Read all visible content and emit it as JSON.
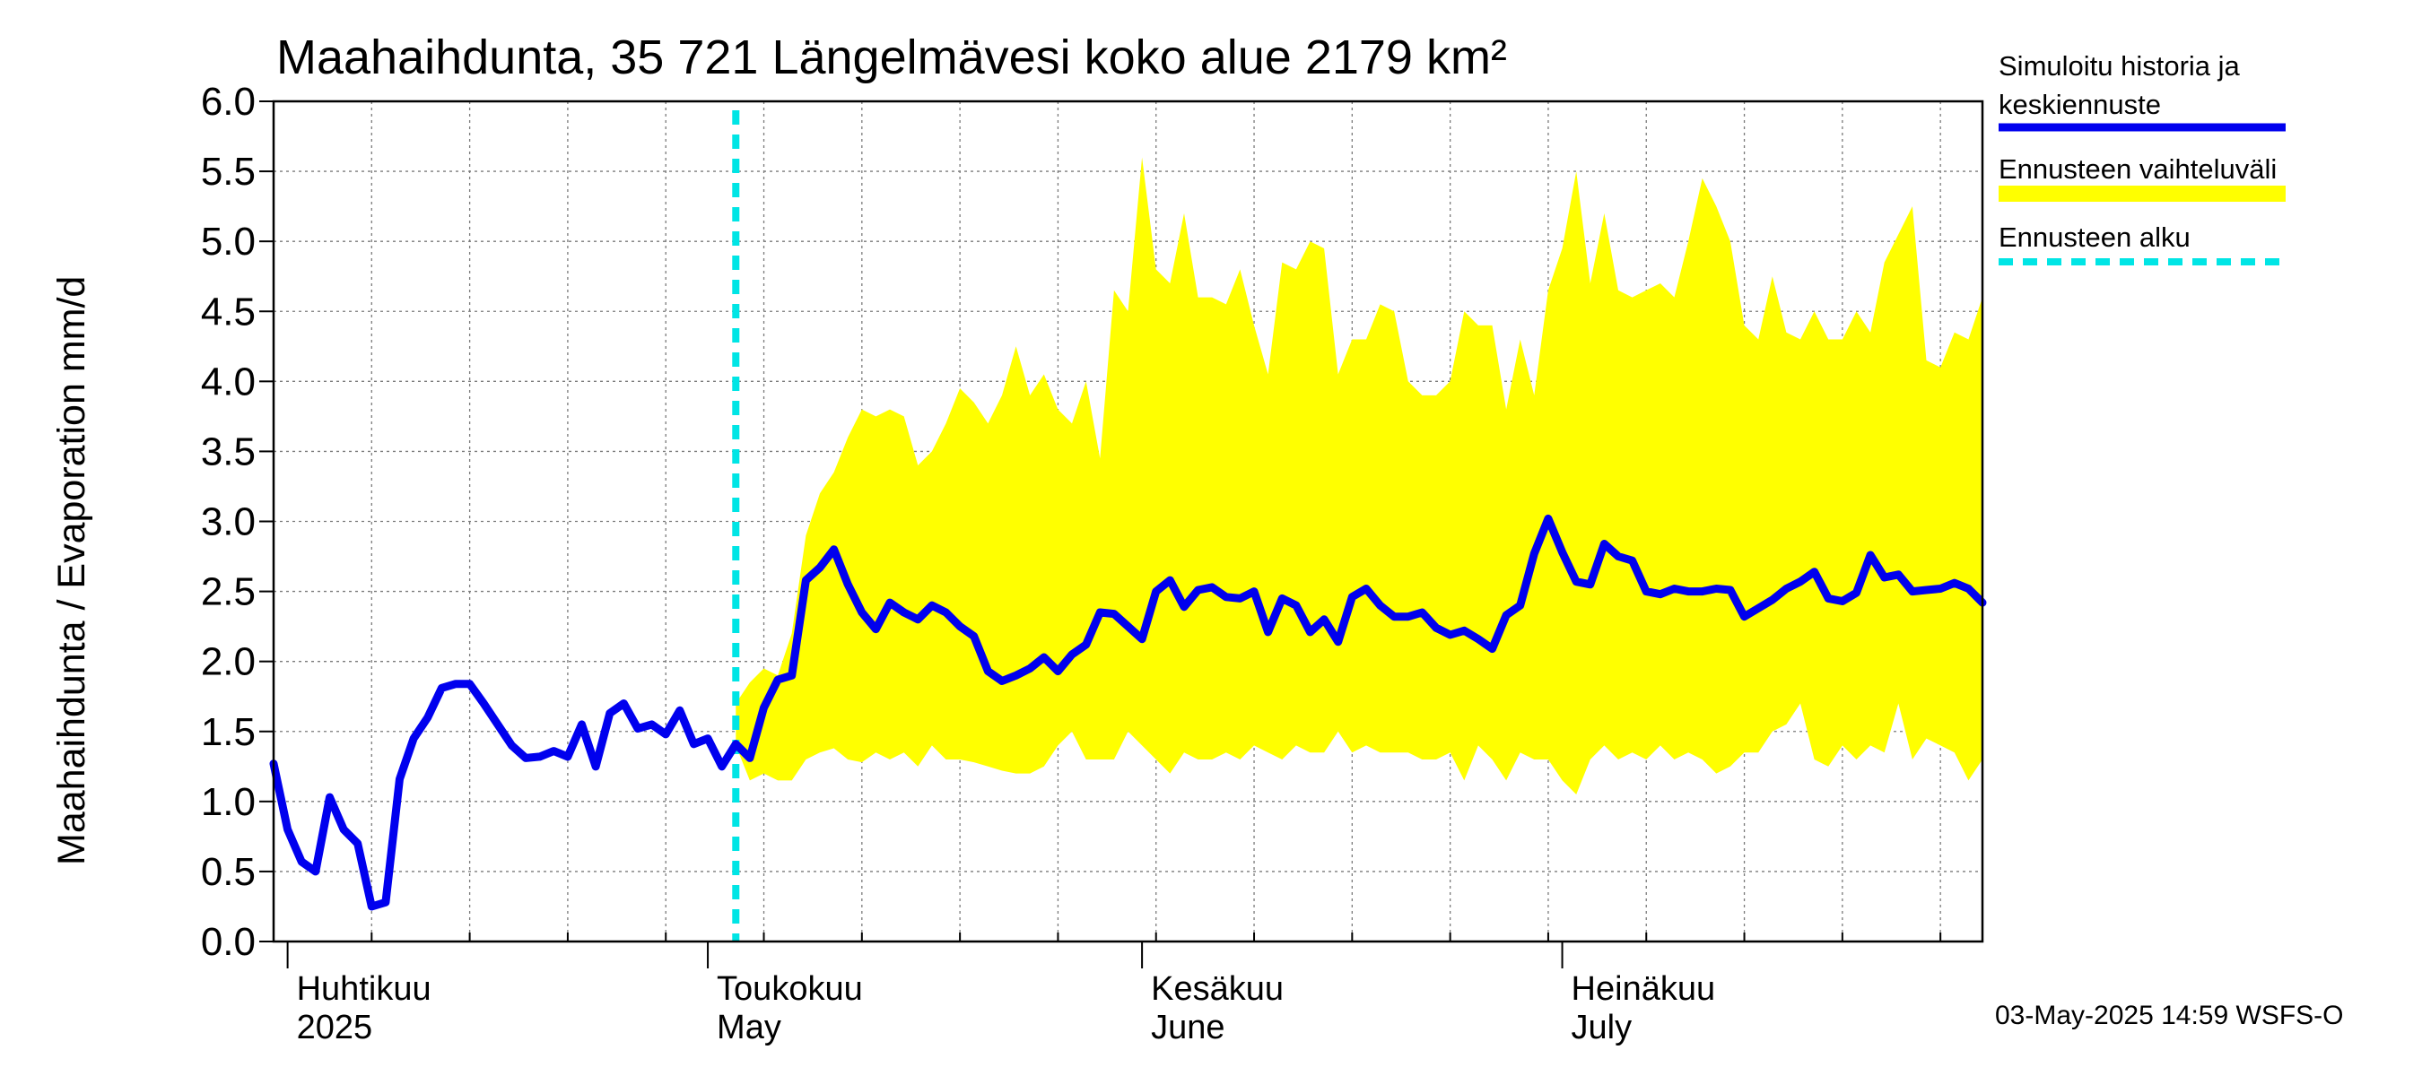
{
  "chart_data": {
    "type": "line",
    "title": "Maahaihdunta, 35 721 Längelmävesi koko alue 2179 km²",
    "ylabel": "Maahaihdunta / Evaporation   mm/d",
    "ylim": [
      0,
      6
    ],
    "yticks": [
      "0.0",
      "0.5",
      "1.0",
      "1.5",
      "2.0",
      "2.5",
      "3.0",
      "3.5",
      "4.0",
      "4.5",
      "5.0",
      "5.5",
      "6.0"
    ],
    "x_range": [
      "2025-03-31",
      "2025-07-31"
    ],
    "month_labels": [
      {
        "date": "2025-04-01",
        "line1": "Huhtikuu",
        "line2": "2025"
      },
      {
        "date": "2025-05-01",
        "line1": "Toukokuu",
        "line2": "May"
      },
      {
        "date": "2025-06-01",
        "line1": "Kesäkuu",
        "line2": "June"
      },
      {
        "date": "2025-07-01",
        "line1": "Heinäkuu",
        "line2": "July"
      }
    ],
    "forecast_start": "2025-05-03",
    "grid": true,
    "legend_position": "right",
    "series": [
      {
        "name": "Simuloitu historia ja keskiennuste",
        "color": "#0000ee",
        "x": [
          "2025-03-31",
          "2025-04-01",
          "2025-04-02",
          "2025-04-03",
          "2025-04-04",
          "2025-04-05",
          "2025-04-06",
          "2025-04-07",
          "2025-04-08",
          "2025-04-09",
          "2025-04-10",
          "2025-04-11",
          "2025-04-12",
          "2025-04-13",
          "2025-04-14",
          "2025-04-15",
          "2025-04-16",
          "2025-04-17",
          "2025-04-18",
          "2025-04-19",
          "2025-04-20",
          "2025-04-21",
          "2025-04-22",
          "2025-04-23",
          "2025-04-24",
          "2025-04-25",
          "2025-04-26",
          "2025-04-27",
          "2025-04-28",
          "2025-04-29",
          "2025-04-30",
          "2025-05-01",
          "2025-05-02",
          "2025-05-03",
          "2025-05-04",
          "2025-05-05",
          "2025-05-06",
          "2025-05-07",
          "2025-05-08",
          "2025-05-09",
          "2025-05-10",
          "2025-05-11",
          "2025-05-12",
          "2025-05-13",
          "2025-05-14",
          "2025-05-15",
          "2025-05-16",
          "2025-05-17",
          "2025-05-18",
          "2025-05-19",
          "2025-05-20",
          "2025-05-21",
          "2025-05-22",
          "2025-05-23",
          "2025-05-24",
          "2025-05-25",
          "2025-05-26",
          "2025-05-27",
          "2025-05-28",
          "2025-05-29",
          "2025-05-30",
          "2025-05-31",
          "2025-06-01",
          "2025-06-02",
          "2025-06-03",
          "2025-06-04",
          "2025-06-05",
          "2025-06-06",
          "2025-06-07",
          "2025-06-08",
          "2025-06-09",
          "2025-06-10",
          "2025-06-11",
          "2025-06-12",
          "2025-06-13",
          "2025-06-14",
          "2025-06-15",
          "2025-06-16",
          "2025-06-17",
          "2025-06-18",
          "2025-06-19",
          "2025-06-20",
          "2025-06-21",
          "2025-06-22",
          "2025-06-23",
          "2025-06-24",
          "2025-06-25",
          "2025-06-26",
          "2025-06-27",
          "2025-06-28",
          "2025-06-29",
          "2025-06-30",
          "2025-07-01",
          "2025-07-02",
          "2025-07-03",
          "2025-07-04",
          "2025-07-05",
          "2025-07-06",
          "2025-07-07",
          "2025-07-08",
          "2025-07-09",
          "2025-07-10",
          "2025-07-11",
          "2025-07-12",
          "2025-07-13",
          "2025-07-14",
          "2025-07-15",
          "2025-07-16",
          "2025-07-17",
          "2025-07-18",
          "2025-07-19",
          "2025-07-20",
          "2025-07-21",
          "2025-07-22",
          "2025-07-23",
          "2025-07-24",
          "2025-07-25",
          "2025-07-26",
          "2025-07-27",
          "2025-07-28",
          "2025-07-29",
          "2025-07-30",
          "2025-07-31"
        ],
        "values": [
          1.27,
          0.8,
          0.57,
          0.5,
          1.03,
          0.8,
          0.7,
          0.25,
          0.28,
          1.16,
          1.45,
          1.6,
          1.81,
          1.84,
          1.84,
          1.7,
          1.55,
          1.4,
          1.31,
          1.32,
          1.36,
          1.32,
          1.55,
          1.25,
          1.63,
          1.7,
          1.52,
          1.55,
          1.48,
          1.65,
          1.41,
          1.45,
          1.25,
          1.41,
          1.31,
          1.67,
          1.87,
          1.9,
          2.58,
          2.67,
          2.8,
          2.55,
          2.35,
          2.23,
          2.42,
          2.35,
          2.3,
          2.4,
          2.35,
          2.25,
          2.18,
          1.93,
          1.86,
          1.9,
          1.95,
          2.03,
          1.93,
          2.05,
          2.12,
          2.35,
          2.34,
          2.25,
          2.16,
          2.5,
          2.58,
          2.39,
          2.51,
          2.53,
          2.46,
          2.45,
          2.5,
          2.21,
          2.45,
          2.4,
          2.21,
          2.3,
          2.14,
          2.46,
          2.52,
          2.4,
          2.32,
          2.32,
          2.35,
          2.24,
          2.19,
          2.22,
          2.16,
          2.09,
          2.33,
          2.4,
          2.77,
          3.02,
          2.78,
          2.57,
          2.55,
          2.84,
          2.75,
          2.72,
          2.5,
          2.48,
          2.52,
          2.5,
          2.5,
          2.52,
          2.51,
          2.32,
          2.38,
          2.44,
          2.52,
          2.57,
          2.64,
          2.45,
          2.43,
          2.49,
          2.76,
          2.6,
          2.62,
          2.5,
          2.51,
          2.52,
          2.56,
          2.52,
          2.42
        ]
      },
      {
        "name": "Ennusteen vaihteluväli",
        "color": "#ffff00",
        "x": [
          "2025-05-03",
          "2025-05-04",
          "2025-05-05",
          "2025-05-06",
          "2025-05-07",
          "2025-05-08",
          "2025-05-09",
          "2025-05-10",
          "2025-05-11",
          "2025-05-12",
          "2025-05-13",
          "2025-05-14",
          "2025-05-15",
          "2025-05-16",
          "2025-05-17",
          "2025-05-18",
          "2025-05-19",
          "2025-05-20",
          "2025-05-21",
          "2025-05-22",
          "2025-05-23",
          "2025-05-24",
          "2025-05-25",
          "2025-05-26",
          "2025-05-27",
          "2025-05-28",
          "2025-05-29",
          "2025-05-30",
          "2025-05-31",
          "2025-06-01",
          "2025-06-02",
          "2025-06-03",
          "2025-06-04",
          "2025-06-05",
          "2025-06-06",
          "2025-06-07",
          "2025-06-08",
          "2025-06-09",
          "2025-06-10",
          "2025-06-11",
          "2025-06-12",
          "2025-06-13",
          "2025-06-14",
          "2025-06-15",
          "2025-06-16",
          "2025-06-17",
          "2025-06-18",
          "2025-06-19",
          "2025-06-20",
          "2025-06-21",
          "2025-06-22",
          "2025-06-23",
          "2025-06-24",
          "2025-06-25",
          "2025-06-26",
          "2025-06-27",
          "2025-06-28",
          "2025-06-29",
          "2025-06-30",
          "2025-07-01",
          "2025-07-02",
          "2025-07-03",
          "2025-07-04",
          "2025-07-05",
          "2025-07-06",
          "2025-07-07",
          "2025-07-08",
          "2025-07-09",
          "2025-07-10",
          "2025-07-11",
          "2025-07-12",
          "2025-07-13",
          "2025-07-14",
          "2025-07-15",
          "2025-07-16",
          "2025-07-17",
          "2025-07-18",
          "2025-07-19",
          "2025-07-20",
          "2025-07-21",
          "2025-07-22",
          "2025-07-23",
          "2025-07-24",
          "2025-07-25",
          "2025-07-26",
          "2025-07-27",
          "2025-07-28",
          "2025-07-29",
          "2025-07-30",
          "2025-07-31"
        ],
        "upper": [
          1.7,
          1.85,
          1.95,
          1.9,
          2.2,
          2.9,
          3.2,
          3.35,
          3.6,
          3.8,
          3.75,
          3.8,
          3.75,
          3.4,
          3.5,
          3.7,
          3.95,
          3.85,
          3.7,
          3.9,
          4.25,
          3.9,
          4.05,
          3.8,
          3.7,
          4.0,
          3.45,
          4.65,
          4.5,
          5.6,
          4.8,
          4.7,
          5.2,
          4.6,
          4.6,
          4.55,
          4.8,
          4.4,
          4.05,
          4.85,
          4.8,
          5.0,
          4.95,
          4.05,
          4.3,
          4.3,
          4.55,
          4.5,
          4.0,
          3.9,
          3.9,
          4.0,
          4.5,
          4.4,
          4.4,
          3.8,
          4.3,
          3.9,
          4.65,
          4.95,
          5.5,
          4.7,
          5.2,
          4.65,
          4.6,
          4.65,
          4.7,
          4.6,
          5.0,
          5.45,
          5.25,
          5.0,
          4.4,
          4.3,
          4.75,
          4.35,
          4.3,
          4.5,
          4.3,
          4.3,
          4.5,
          4.35,
          4.85,
          5.05,
          5.25,
          4.15,
          4.1,
          4.35,
          4.3,
          4.6
        ],
        "lower": [
          1.4,
          1.15,
          1.2,
          1.15,
          1.15,
          1.3,
          1.35,
          1.38,
          1.3,
          1.28,
          1.35,
          1.3,
          1.35,
          1.25,
          1.4,
          1.3,
          1.3,
          1.28,
          1.25,
          1.22,
          1.2,
          1.2,
          1.25,
          1.4,
          1.5,
          1.3,
          1.3,
          1.3,
          1.5,
          1.4,
          1.3,
          1.2,
          1.35,
          1.3,
          1.3,
          1.35,
          1.3,
          1.4,
          1.35,
          1.3,
          1.4,
          1.35,
          1.35,
          1.5,
          1.35,
          1.4,
          1.35,
          1.35,
          1.35,
          1.3,
          1.3,
          1.35,
          1.15,
          1.4,
          1.3,
          1.15,
          1.35,
          1.3,
          1.3,
          1.15,
          1.05,
          1.3,
          1.4,
          1.3,
          1.35,
          1.3,
          1.4,
          1.3,
          1.35,
          1.3,
          1.2,
          1.25,
          1.35,
          1.35,
          1.5,
          1.55,
          1.7,
          1.3,
          1.25,
          1.4,
          1.3,
          1.4,
          1.35,
          1.7,
          1.3,
          1.45,
          1.4,
          1.35,
          1.15,
          1.3
        ]
      },
      {
        "name": "Ennusteen alku",
        "color": "#00e5e5"
      }
    ]
  },
  "legend": {
    "item1_line1": "Simuloitu historia ja",
    "item1_line2": "keskiennuste",
    "item2": "Ennusteen vaihteluväli",
    "item3": "Ennusteen alku"
  },
  "footer": "03-May-2025 14:59 WSFS-O"
}
